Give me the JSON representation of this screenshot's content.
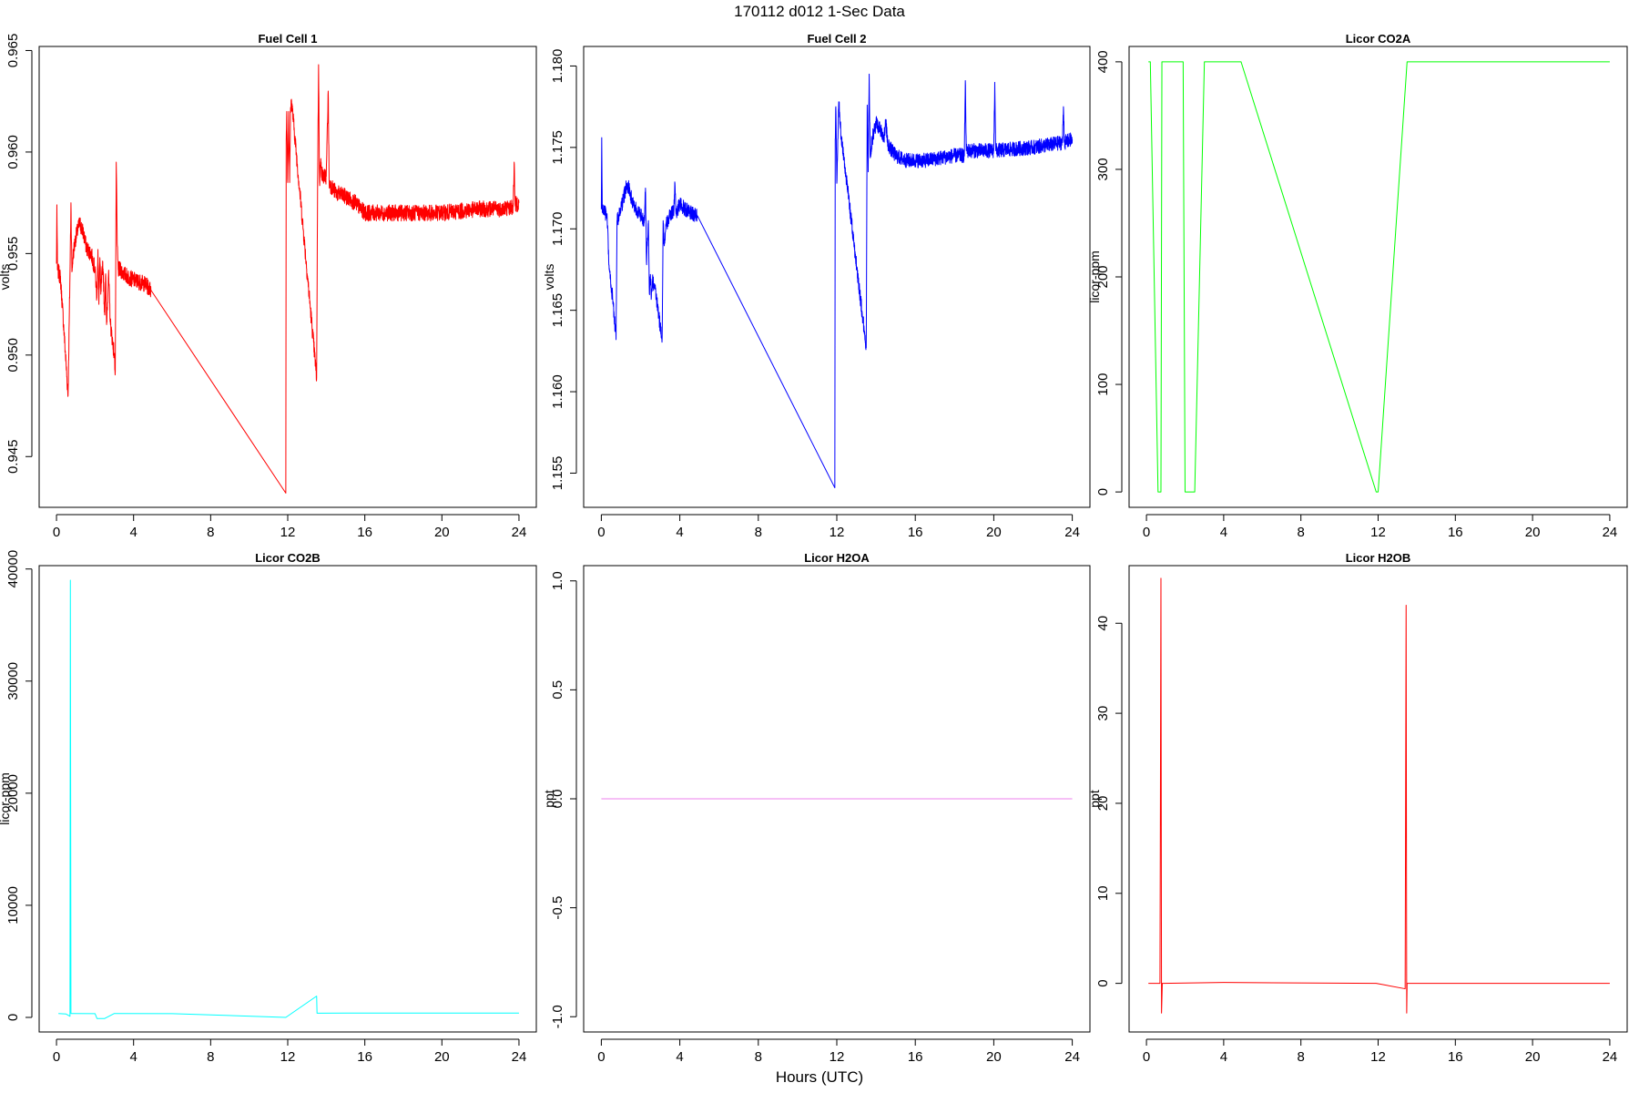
{
  "figure": {
    "title": "170112   d012   1-Sec Data",
    "xlabel": "Hours (UTC)"
  },
  "chart_data": [
    {
      "type": "line",
      "title": "Fuel Cell 1",
      "xlabel": "",
      "ylabel": "volts",
      "color": "#ff0000",
      "xlim": [
        -0.9,
        24.9
      ],
      "ylim": [
        0.9425,
        0.9652
      ],
      "xticks": [
        0,
        4,
        8,
        12,
        16,
        20,
        24
      ],
      "yticks": [
        0.945,
        0.95,
        0.955,
        0.96,
        0.965
      ],
      "yticklabels": [
        "0.945",
        "0.950",
        "0.955",
        "0.960",
        "0.965"
      ],
      "noise": 0.0004,
      "x": [
        0,
        0.02,
        0.05,
        0.1,
        0.2,
        0.3,
        0.4,
        0.5,
        0.6,
        0.7,
        0.75,
        0.8,
        0.82,
        0.85,
        0.9,
        1.0,
        1.2,
        1.4,
        1.5,
        1.6,
        1.8,
        2.0,
        2.1,
        2.15,
        2.2,
        2.25,
        2.3,
        2.4,
        2.5,
        2.55,
        2.6,
        2.7,
        2.8,
        3.0,
        3.05,
        3.1,
        3.15,
        3.2,
        3.3,
        3.5,
        3.8,
        4.0,
        4.3,
        4.6,
        4.9,
        11.9,
        11.92,
        11.95,
        12.0,
        12.05,
        12.1,
        12.15,
        12.2,
        13.5,
        13.55,
        13.6,
        13.65,
        13.7,
        13.8,
        14.0,
        14.1,
        14.15,
        14.2,
        14.5,
        15.0,
        15.5,
        15.8,
        16.0,
        16.5,
        17.0,
        18.0,
        19.0,
        20.0,
        21.0,
        22.0,
        23.0,
        23.7,
        23.75,
        23.8,
        24.0
      ],
      "y": [
        0.9545,
        0.9574,
        0.9542,
        0.9541,
        0.9538,
        0.9525,
        0.951,
        0.9495,
        0.948,
        0.954,
        0.9575,
        0.9541,
        0.9543,
        0.9548,
        0.9552,
        0.9558,
        0.9565,
        0.956,
        0.9555,
        0.9552,
        0.955,
        0.9542,
        0.9528,
        0.9552,
        0.9525,
        0.9548,
        0.953,
        0.9546,
        0.952,
        0.954,
        0.9515,
        0.954,
        0.9515,
        0.95,
        0.9492,
        0.9595,
        0.9555,
        0.9542,
        0.9542,
        0.954,
        0.9538,
        0.9537,
        0.9536,
        0.9535,
        0.9532,
        0.9432,
        0.9605,
        0.962,
        0.9585,
        0.962,
        0.9585,
        0.9622,
        0.9625,
        0.9489,
        0.9585,
        0.9643,
        0.9585,
        0.9595,
        0.9588,
        0.9588,
        0.963,
        0.9585,
        0.9584,
        0.958,
        0.9578,
        0.9575,
        0.9572,
        0.957,
        0.957,
        0.957,
        0.957,
        0.957,
        0.957,
        0.9571,
        0.9572,
        0.9572,
        0.9573,
        0.9595,
        0.9574,
        0.9575
      ]
    },
    {
      "type": "line",
      "title": "Fuel Cell 2",
      "xlabel": "",
      "ylabel": "volts",
      "color": "#0000ff",
      "xlim": [
        -0.9,
        24.9
      ],
      "ylim": [
        1.1529,
        1.1812
      ],
      "xticks": [
        0,
        4,
        8,
        12,
        16,
        20,
        24
      ],
      "yticks": [
        1.155,
        1.16,
        1.165,
        1.17,
        1.175,
        1.18
      ],
      "yticklabels": [
        "1.155",
        "1.160",
        "1.165",
        "1.170",
        "1.175",
        "1.180"
      ],
      "noise": 0.00045,
      "x": [
        0,
        0.02,
        0.05,
        0.1,
        0.2,
        0.3,
        0.4,
        0.6,
        0.75,
        0.8,
        0.9,
        1.0,
        1.2,
        1.3,
        1.4,
        1.5,
        1.6,
        1.8,
        2.0,
        2.2,
        2.25,
        2.3,
        2.4,
        2.45,
        2.5,
        2.55,
        2.6,
        2.7,
        2.8,
        3.0,
        3.1,
        3.15,
        3.2,
        3.3,
        3.5,
        3.7,
        3.75,
        3.8,
        4.0,
        4.2,
        4.5,
        4.9,
        11.9,
        11.92,
        11.95,
        12.0,
        12.1,
        12.2,
        13.5,
        13.55,
        13.6,
        13.65,
        13.7,
        13.8,
        14.0,
        14.2,
        14.4,
        14.5,
        14.6,
        14.8,
        15.0,
        15.5,
        16.0,
        16.5,
        17.0,
        18.0,
        18.5,
        18.55,
        18.6,
        19.0,
        20.0,
        20.05,
        20.1,
        21.0,
        22.0,
        23.0,
        23.5,
        23.55,
        23.6,
        24.0
      ],
      "y": [
        1.1712,
        1.1756,
        1.171,
        1.1712,
        1.171,
        1.1705,
        1.1675,
        1.1655,
        1.1632,
        1.1705,
        1.1708,
        1.1712,
        1.1722,
        1.1728,
        1.1725,
        1.172,
        1.1716,
        1.1712,
        1.1708,
        1.1705,
        1.1725,
        1.168,
        1.1705,
        1.166,
        1.1672,
        1.1658,
        1.1668,
        1.1665,
        1.1658,
        1.164,
        1.1633,
        1.1705,
        1.169,
        1.1702,
        1.1708,
        1.1712,
        1.1728,
        1.171,
        1.1715,
        1.1713,
        1.171,
        1.1708,
        1.1541,
        1.1755,
        1.1775,
        1.1728,
        1.1778,
        1.176,
        1.1627,
        1.1776,
        1.1735,
        1.1795,
        1.1745,
        1.1755,
        1.1765,
        1.1762,
        1.1756,
        1.1765,
        1.1752,
        1.1748,
        1.1745,
        1.1742,
        1.1742,
        1.1742,
        1.1743,
        1.1745,
        1.1745,
        1.1791,
        1.1748,
        1.1748,
        1.1748,
        1.179,
        1.1748,
        1.1749,
        1.175,
        1.1752,
        1.1753,
        1.1775,
        1.1753,
        1.1755
      ]
    },
    {
      "type": "line",
      "title": "Licor CO2A",
      "xlabel": "",
      "ylabel": "licor-ppm",
      "color": "#00ff00",
      "xlim": [
        -0.9,
        24.9
      ],
      "ylim": [
        -14.3,
        414.3
      ],
      "xticks": [
        0,
        4,
        8,
        12,
        16,
        20,
        24
      ],
      "yticks": [
        0,
        100,
        200,
        300,
        400
      ],
      "yticklabels": [
        "0",
        "100",
        "200",
        "300",
        "400"
      ],
      "noise": 0,
      "x": [
        0.1,
        0.2,
        0.6,
        0.75,
        0.8,
        1.9,
        2.0,
        2.5,
        3.0,
        3.2,
        4.9,
        11.9,
        12.0,
        13.5,
        24.0
      ],
      "y": [
        400,
        400,
        0,
        0,
        400,
        400,
        0,
        0,
        400,
        400,
        400,
        0,
        0,
        400,
        400
      ]
    },
    {
      "type": "line",
      "title": "Licor CO2B",
      "xlabel": "",
      "ylabel": "licor-ppm",
      "color": "#00ffff",
      "xlim": [
        -0.9,
        24.9
      ],
      "ylim": [
        -1300,
        40300
      ],
      "xticks": [
        0,
        4,
        8,
        12,
        16,
        20,
        24
      ],
      "yticks": [
        0,
        10000,
        20000,
        30000,
        40000
      ],
      "yticklabels": [
        "0",
        "10000",
        "20000",
        "30000",
        "40000"
      ],
      "noise": 0,
      "x": [
        0.1,
        0.5,
        0.7,
        0.72,
        0.75,
        0.8,
        2.0,
        2.1,
        2.5,
        3.0,
        6.0,
        11.9,
        13.5,
        13.52,
        24.0
      ],
      "y": [
        350,
        300,
        100,
        39000,
        350,
        350,
        340,
        -100,
        -100,
        350,
        340,
        0,
        1900,
        380,
        390
      ]
    },
    {
      "type": "line",
      "title": "Licor H2OA",
      "xlabel": "",
      "ylabel": "ppt",
      "color": "#ee82ee",
      "xlim": [
        -0.9,
        24.9
      ],
      "ylim": [
        -1.07,
        1.07
      ],
      "xticks": [
        0,
        4,
        8,
        12,
        16,
        20,
        24
      ],
      "yticks": [
        -1.0,
        -0.5,
        0.0,
        0.5,
        1.0
      ],
      "yticklabels": [
        "-1.0",
        "-0.5",
        "0.0",
        "0.5",
        "1.0"
      ],
      "noise": 0,
      "x": [
        0,
        24
      ],
      "y": [
        0,
        0
      ]
    },
    {
      "type": "line",
      "title": "Licor H2OB",
      "xlabel": "",
      "ylabel": "ppt",
      "color": "#ff0000",
      "xlim": [
        -0.9,
        24.9
      ],
      "ylim": [
        -5.4,
        46.4
      ],
      "xticks": [
        0,
        4,
        8,
        12,
        16,
        20,
        24
      ],
      "yticks": [
        0,
        10,
        20,
        30,
        40
      ],
      "yticklabels": [
        "0",
        "10",
        "20",
        "30",
        "40"
      ],
      "noise": 0,
      "x": [
        0.1,
        0.7,
        0.75,
        0.78,
        0.82,
        0.85,
        4.0,
        11.9,
        13.4,
        13.45,
        13.48,
        13.5,
        13.55,
        24.0
      ],
      "y": [
        0,
        0,
        45,
        -3.3,
        0,
        0,
        0.1,
        0,
        -0.6,
        42,
        -3.3,
        0,
        0,
        0
      ]
    }
  ]
}
